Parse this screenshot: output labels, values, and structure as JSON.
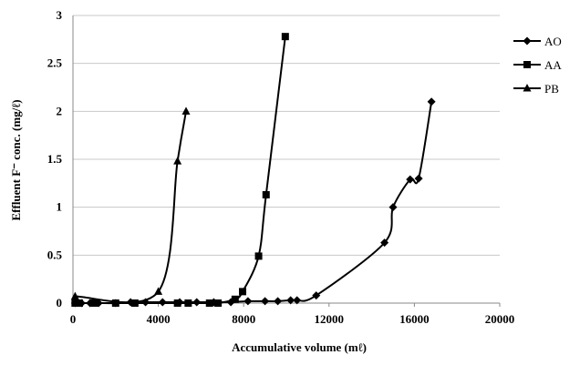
{
  "chart_data": {
    "type": "line",
    "xlabel": "Accumulative volume (mℓ)",
    "ylabel": "Effluent F⁻ conc. (mg/ℓ)",
    "xlim": [
      0,
      20000
    ],
    "ylim": [
      0,
      3
    ],
    "x_ticks": [
      "0",
      "4000",
      "8000",
      "12000",
      "16000",
      "20000"
    ],
    "y_ticks": [
      "0",
      "0.5",
      "1",
      "1.5",
      "2",
      "2.5",
      "3"
    ],
    "grid": "horizontal",
    "legend": "right",
    "series": [
      {
        "name": "AO",
        "marker": "diamond",
        "x": [
          100,
          400,
          800,
          1200,
          2000,
          2700,
          3400,
          4200,
          5000,
          5800,
          6600,
          7400,
          8200,
          9000,
          9600,
          10200,
          10500,
          11400,
          14600,
          15000,
          15800,
          16200,
          16800
        ],
        "y": [
          0,
          0,
          0,
          0,
          0,
          0.01,
          0.01,
          0.01,
          0.01,
          0.01,
          0.01,
          0.01,
          0.02,
          0.02,
          0.02,
          0.03,
          0.03,
          0.08,
          0.63,
          1.0,
          1.29,
          1.3,
          2.1
        ]
      },
      {
        "name": "AA",
        "marker": "square",
        "x": [
          100,
          300,
          1000,
          2000,
          2900,
          4900,
          5400,
          6400,
          6800,
          7600,
          7950,
          8700,
          9050,
          9950
        ],
        "y": [
          0,
          0,
          0,
          0,
          0,
          0,
          0,
          0,
          0,
          0.04,
          0.12,
          0.49,
          1.13,
          2.78
        ]
      },
      {
        "name": "PB",
        "marker": "triangle",
        "x": [
          100,
          4000,
          4900,
          5300
        ],
        "y": [
          0.07,
          0.12,
          1.48,
          2.0
        ]
      }
    ]
  }
}
